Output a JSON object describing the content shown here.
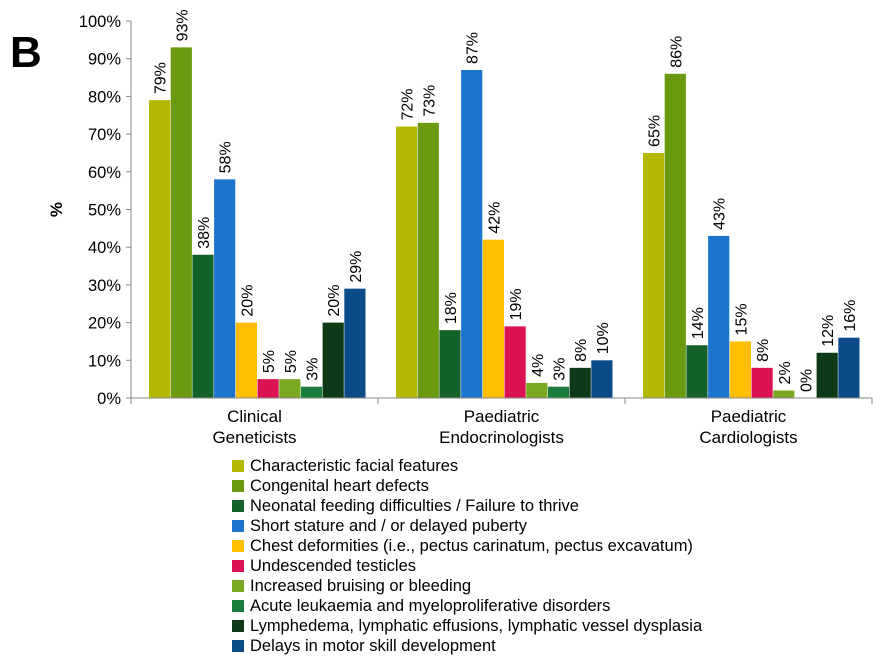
{
  "panel_label": "B",
  "chart_data": {
    "type": "bar",
    "ylabel": "%",
    "ylim": [
      0,
      100
    ],
    "yticks": [
      "0%",
      "10%",
      "20%",
      "30%",
      "40%",
      "50%",
      "60%",
      "70%",
      "80%",
      "90%",
      "100%"
    ],
    "categories": [
      [
        "Clinical",
        "Geneticists"
      ],
      [
        "Paediatric",
        "Endocrinologists"
      ],
      [
        "Paediatric",
        "Cardiologists"
      ]
    ],
    "legend_position": "bottom",
    "series": [
      {
        "name": "Characteristic facial features",
        "color": "#b5b800",
        "values": [
          79,
          72,
          65
        ],
        "labels": [
          "79%",
          "72%",
          "65%"
        ]
      },
      {
        "name": "Congenital heart defects",
        "color": "#6b9a10",
        "values": [
          93,
          73,
          86
        ],
        "labels": [
          "93%",
          "73%",
          "86%"
        ]
      },
      {
        "name": "Neonatal feeding difficulties / Failure to thrive",
        "color": "#13622a",
        "values": [
          38,
          18,
          14
        ],
        "labels": [
          "38%",
          "18%",
          "14%"
        ]
      },
      {
        "name": "Short stature and / or delayed puberty",
        "color": "#1b75cf",
        "values": [
          58,
          87,
          43
        ],
        "labels": [
          "58%",
          "87%",
          "43%"
        ]
      },
      {
        "name": "Chest deformities (i.e., pectus carinatum, pectus excavatum)",
        "color": "#ffbf00",
        "values": [
          20,
          42,
          15
        ],
        "labels": [
          "20%",
          "42%",
          "15%"
        ]
      },
      {
        "name": "Undescended testicles",
        "color": "#dc1352",
        "values": [
          5,
          19,
          8
        ],
        "labels": [
          "5%",
          "19%",
          "8%"
        ]
      },
      {
        "name": "Increased bruising or bleeding",
        "color": "#7aa820",
        "values": [
          5,
          4,
          2
        ],
        "labels": [
          "5%",
          "4%",
          "2%"
        ]
      },
      {
        "name": "Acute leukaemia and myeloproliferative disorders",
        "color": "#1b7d3b",
        "values": [
          3,
          3,
          0
        ],
        "labels": [
          "3%",
          "3%",
          "0%"
        ]
      },
      {
        "name": "Lymphedema, lymphatic effusions, lymphatic vessel dysplasia",
        "color": "#0e3a17",
        "values": [
          20,
          8,
          12
        ],
        "labels": [
          "20%",
          "8%",
          "12%"
        ]
      },
      {
        "name": "Delays in motor skill development",
        "color": "#0b4b87",
        "values": [
          29,
          10,
          16
        ],
        "labels": [
          "29%",
          "10%",
          "16%"
        ]
      }
    ]
  }
}
